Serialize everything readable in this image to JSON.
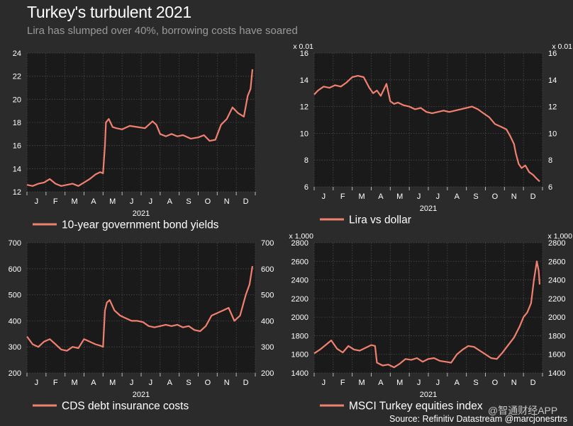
{
  "header": {
    "title": "Turkey's turbulent 2021",
    "subtitle": "Lira has slumped over 40%, borrowing costs have soared"
  },
  "footer": {
    "source": "Source: Refinitiv Datastream @marcjonesrtrs",
    "watermark": "@智通财经APP"
  },
  "colors": {
    "background": "#2b2b2b",
    "plot_background": "#1a1a1a",
    "line": "#f08070",
    "grid": "#4a4a4a",
    "axis_text": "#ffffff"
  },
  "chart_data": [
    {
      "type": "line",
      "legend": "10-year government bond yields",
      "xlabel": "2021",
      "months": [
        "J",
        "F",
        "M",
        "A",
        "M",
        "J",
        "J",
        "A",
        "S",
        "O",
        "N",
        "D"
      ],
      "ylim": [
        12,
        24
      ],
      "yticks": [
        12,
        14,
        16,
        18,
        20,
        22,
        24
      ],
      "y_axis_left": true,
      "y_axis_right": false,
      "multiplier": "",
      "grid": true,
      "x": [
        0,
        0.3,
        0.6,
        0.9,
        1.2,
        1.5,
        1.8,
        2.1,
        2.4,
        2.7,
        3.0,
        3.3,
        3.6,
        3.85,
        4.0,
        4.1,
        4.15,
        4.3,
        4.5,
        4.7,
        5.0,
        5.4,
        5.8,
        6.2,
        6.6,
        6.8,
        7.0,
        7.3,
        7.6,
        7.9,
        8.2,
        8.6,
        9.0,
        9.3,
        9.6,
        9.9,
        10.2,
        10.5,
        10.8,
        11.1,
        11.4,
        11.6,
        11.75,
        11.85
      ],
      "y": [
        12.6,
        12.5,
        12.7,
        12.8,
        13.1,
        12.7,
        12.5,
        12.6,
        12.7,
        12.5,
        12.8,
        13.1,
        13.5,
        13.7,
        13.6,
        16.0,
        18.0,
        18.3,
        17.6,
        17.5,
        17.4,
        17.7,
        17.6,
        17.5,
        18.1,
        17.8,
        17.0,
        16.8,
        17.0,
        16.8,
        16.9,
        16.6,
        16.7,
        16.9,
        16.4,
        16.5,
        17.8,
        18.3,
        19.3,
        18.8,
        18.5,
        20.3,
        20.9,
        22.6
      ]
    },
    {
      "type": "line",
      "legend": "Lira vs dollar",
      "xlabel": "2021",
      "months": [
        "J",
        "F",
        "M",
        "A",
        "M",
        "J",
        "J",
        "A",
        "S",
        "O",
        "N",
        "D"
      ],
      "ylim": [
        6,
        16
      ],
      "yticks": [
        6,
        8,
        10,
        12,
        14,
        16
      ],
      "y_axis_left": true,
      "y_axis_right": true,
      "multiplier": "x 0.01",
      "grid": true,
      "x": [
        0,
        0.2,
        0.5,
        0.8,
        1.1,
        1.4,
        1.7,
        2.0,
        2.3,
        2.6,
        2.9,
        3.1,
        3.3,
        3.5,
        3.8,
        4.0,
        4.2,
        4.4,
        4.7,
        5.0,
        5.3,
        5.6,
        5.9,
        6.2,
        6.5,
        6.8,
        7.1,
        7.4,
        7.7,
        8.0,
        8.3,
        8.6,
        8.9,
        9.2,
        9.5,
        9.8,
        10.1,
        10.3,
        10.5,
        10.6,
        10.75,
        10.9,
        11.1,
        11.3,
        11.5,
        11.7,
        11.85
      ],
      "y": [
        12.9,
        13.2,
        13.5,
        13.4,
        13.6,
        13.5,
        13.8,
        14.2,
        14.3,
        14.2,
        13.4,
        13.0,
        13.2,
        12.8,
        13.7,
        12.4,
        12.2,
        12.3,
        12.1,
        12.0,
        11.8,
        11.9,
        11.6,
        11.5,
        11.6,
        11.7,
        11.6,
        11.7,
        11.8,
        11.9,
        12.0,
        11.8,
        11.5,
        11.2,
        10.7,
        10.5,
        10.3,
        9.8,
        9.2,
        8.5,
        7.7,
        7.4,
        7.6,
        7.1,
        6.9,
        6.6,
        6.4
      ]
    },
    {
      "type": "line",
      "legend": "CDS debt insurance costs",
      "xlabel": "2021",
      "months": [
        "J",
        "F",
        "M",
        "A",
        "M",
        "J",
        "J",
        "A",
        "S",
        "O",
        "N",
        "D"
      ],
      "ylim": [
        200,
        700
      ],
      "yticks": [
        200,
        300,
        400,
        500,
        600,
        700
      ],
      "y_axis_left": true,
      "y_axis_right": true,
      "multiplier": "",
      "grid": true,
      "x": [
        0,
        0.3,
        0.6,
        0.9,
        1.2,
        1.5,
        1.8,
        2.1,
        2.4,
        2.7,
        3.0,
        3.3,
        3.6,
        3.85,
        4.0,
        4.1,
        4.2,
        4.35,
        4.6,
        4.9,
        5.2,
        5.5,
        5.8,
        6.1,
        6.4,
        6.7,
        7.0,
        7.3,
        7.6,
        7.9,
        8.2,
        8.5,
        8.8,
        9.1,
        9.4,
        9.7,
        10.0,
        10.3,
        10.6,
        10.9,
        11.2,
        11.5,
        11.7,
        11.85
      ],
      "y": [
        340,
        310,
        300,
        320,
        330,
        310,
        290,
        285,
        300,
        295,
        330,
        320,
        310,
        305,
        300,
        440,
        470,
        480,
        440,
        420,
        410,
        400,
        400,
        395,
        380,
        375,
        380,
        385,
        380,
        385,
        375,
        380,
        365,
        360,
        380,
        420,
        430,
        440,
        450,
        400,
        420,
        500,
        540,
        610
      ]
    },
    {
      "type": "line",
      "legend": "MSCI Turkey equities index",
      "xlabel": "2021",
      "months": [
        "J",
        "F",
        "M",
        "A",
        "M",
        "J",
        "J",
        "A",
        "S",
        "O",
        "N",
        "D"
      ],
      "ylim": [
        1400,
        2800
      ],
      "yticks": [
        1400,
        1600,
        1800,
        2000,
        2200,
        2400,
        2600,
        2800
      ],
      "y_axis_left": true,
      "y_axis_right": true,
      "multiplier": "x 1,000",
      "grid": true,
      "x": [
        0,
        0.3,
        0.6,
        0.9,
        1.2,
        1.5,
        1.8,
        2.1,
        2.4,
        2.7,
        3.0,
        3.2,
        3.3,
        3.6,
        3.9,
        4.2,
        4.5,
        4.8,
        5.1,
        5.4,
        5.7,
        6.0,
        6.3,
        6.6,
        6.9,
        7.2,
        7.5,
        7.8,
        8.1,
        8.4,
        8.7,
        9.0,
        9.3,
        9.6,
        9.9,
        10.2,
        10.5,
        10.8,
        11.0,
        11.2,
        11.4,
        11.55,
        11.7,
        11.8,
        11.85
      ],
      "y": [
        1610,
        1650,
        1700,
        1750,
        1660,
        1620,
        1690,
        1650,
        1640,
        1670,
        1700,
        1690,
        1510,
        1480,
        1490,
        1460,
        1500,
        1550,
        1540,
        1560,
        1520,
        1550,
        1560,
        1530,
        1520,
        1510,
        1600,
        1650,
        1690,
        1680,
        1640,
        1600,
        1560,
        1550,
        1620,
        1700,
        1780,
        1900,
        2000,
        2050,
        2150,
        2400,
        2600,
        2500,
        2350
      ]
    }
  ]
}
